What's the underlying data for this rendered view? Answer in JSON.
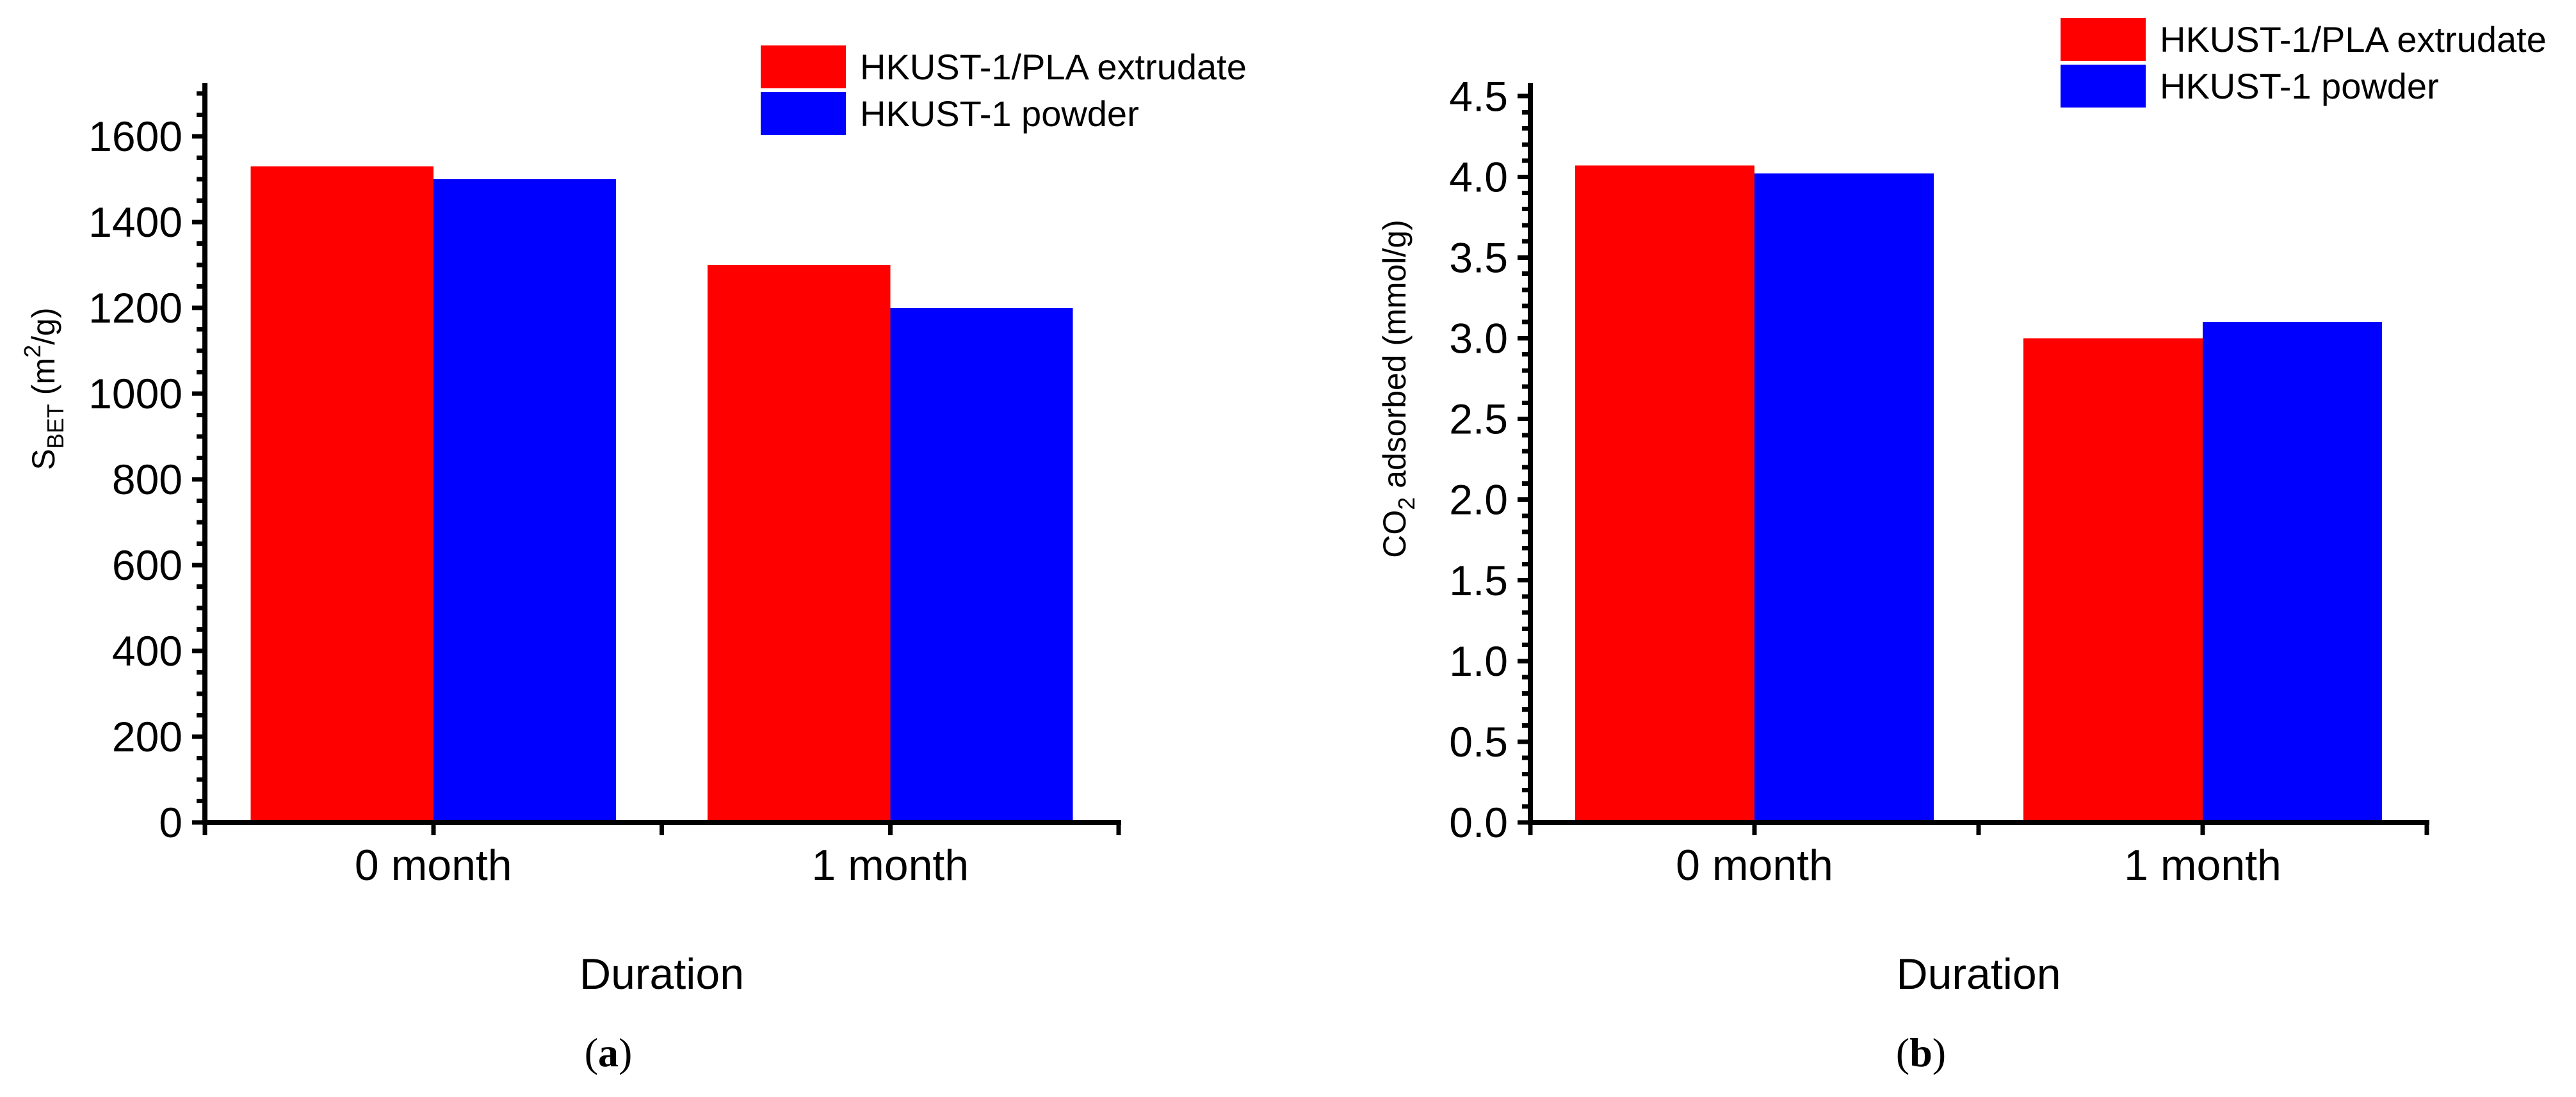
{
  "colors": {
    "series1": "#ff0000",
    "series2": "#0000ff",
    "axis": "#000000",
    "background": "#ffffff"
  },
  "legend": {
    "items": [
      {
        "label": "HKUST-1/PLA extrudate",
        "color": "#ff0000"
      },
      {
        "label": "HKUST-1 powder",
        "color": "#0000ff"
      }
    ],
    "position": "top-right"
  },
  "captions": {
    "a": {
      "prefix": "(",
      "letter": "a",
      "suffix": ")"
    },
    "b": {
      "prefix": "(",
      "letter": "b",
      "suffix": ")"
    }
  },
  "chart_data": [
    {
      "panel": "a",
      "type": "bar",
      "categories": [
        "0 month",
        "1 month"
      ],
      "series": [
        {
          "name": "HKUST-1/PLA extrudate",
          "color": "#ff0000",
          "values": [
            1530,
            1300
          ]
        },
        {
          "name": "HKUST-1 powder",
          "color": "#0000ff",
          "values": [
            1500,
            1200
          ]
        }
      ],
      "xlabel": "Duration",
      "ylabel_text": "S_BET (m2/g)",
      "ylabel_parts": [
        {
          "t": "S"
        },
        {
          "t": "BET",
          "style": "sub"
        },
        {
          "t": " (m"
        },
        {
          "t": "2",
          "style": "sup"
        },
        {
          "t": "/g)"
        }
      ],
      "ylim": [
        0,
        1724
      ],
      "yticks": [
        0,
        200,
        400,
        600,
        800,
        1000,
        1200,
        1400,
        1600
      ],
      "ytick_labels": [
        "0",
        "200",
        "400",
        "600",
        "800",
        "1000",
        "1200",
        "1400",
        "1600"
      ],
      "yminor_step": 50,
      "grid": false,
      "legend": true
    },
    {
      "panel": "b",
      "type": "bar",
      "categories": [
        "0 month",
        "1 month"
      ],
      "series": [
        {
          "name": "HKUST-1/PLA extrudate",
          "color": "#ff0000",
          "values": [
            4.07,
            3.0
          ]
        },
        {
          "name": "HKUST-1 powder",
          "color": "#0000ff",
          "values": [
            4.02,
            3.1
          ]
        }
      ],
      "xlabel": "Duration",
      "ylabel_text": "CO2 adsorbed (mmol/g)",
      "ylabel_parts": [
        {
          "t": "CO"
        },
        {
          "t": "2",
          "style": "sub"
        },
        {
          "t": " adsorbed (mmol/g)"
        }
      ],
      "ylim": [
        0,
        4.58
      ],
      "yticks": [
        0.0,
        0.5,
        1.0,
        1.5,
        2.0,
        2.5,
        3.0,
        3.5,
        4.0,
        4.5
      ],
      "ytick_labels": [
        "0.0",
        "0.5",
        "1.0",
        "1.5",
        "2.0",
        "2.5",
        "3.0",
        "3.5",
        "4.0",
        "4.5"
      ],
      "yminor_step": 0.1,
      "grid": false,
      "legend": true
    }
  ]
}
